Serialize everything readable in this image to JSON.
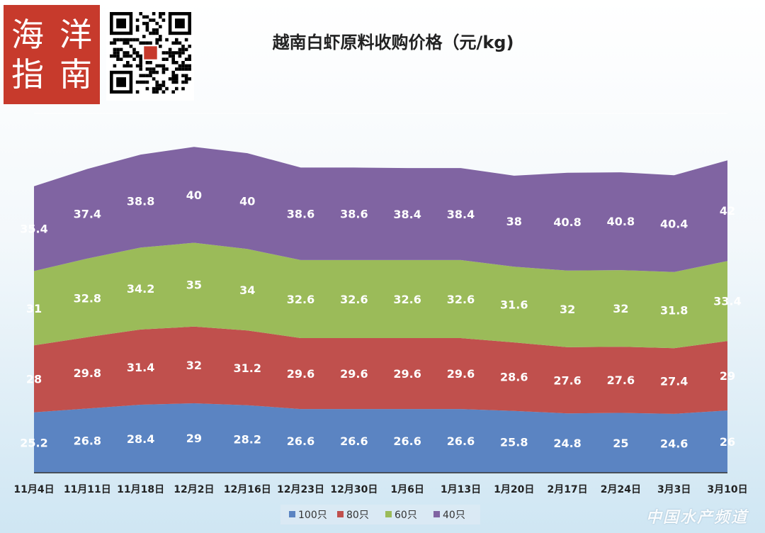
{
  "logo": {
    "chars": [
      "海",
      "洋",
      "指",
      "南"
    ]
  },
  "watermark": "中国水产频道",
  "colors": {
    "s100": "#5b84c2",
    "s80": "#c0504d",
    "s60": "#9bbb59",
    "s40": "#8064a2"
  },
  "chart_data": {
    "type": "area",
    "stacked": true,
    "title": "越南白虾原料收购价格（元/kg)",
    "xlabel": "",
    "ylabel": "",
    "categories": [
      "11月4日",
      "11月11日",
      "11月18日",
      "12月2日",
      "12月16日",
      "12月23日",
      "12月30日",
      "1月6日",
      "1月13日",
      "1月20日",
      "2月17日",
      "2月24日",
      "3月3日",
      "3月10日"
    ],
    "series": [
      {
        "name": "100只",
        "values": [
          25.2,
          26.8,
          28.4,
          29,
          28.2,
          26.6,
          26.6,
          26.6,
          26.6,
          25.8,
          24.8,
          25,
          24.6,
          26
        ]
      },
      {
        "name": "80只",
        "values": [
          28,
          29.8,
          31.4,
          32,
          31.2,
          29.6,
          29.6,
          29.6,
          29.6,
          28.6,
          27.6,
          27.6,
          27.4,
          29
        ]
      },
      {
        "name": "60只",
        "values": [
          31,
          32.8,
          34.2,
          35,
          34,
          32.6,
          32.6,
          32.6,
          32.6,
          31.6,
          32,
          32,
          31.8,
          33.4
        ]
      },
      {
        "name": "40只",
        "values": [
          35.4,
          37.4,
          38.8,
          40,
          40,
          38.6,
          38.6,
          38.4,
          38.4,
          38,
          40.8,
          40.8,
          40.4,
          42
        ]
      }
    ],
    "ylim": [
      0,
      150
    ],
    "grid": true,
    "legend": "bottom"
  }
}
